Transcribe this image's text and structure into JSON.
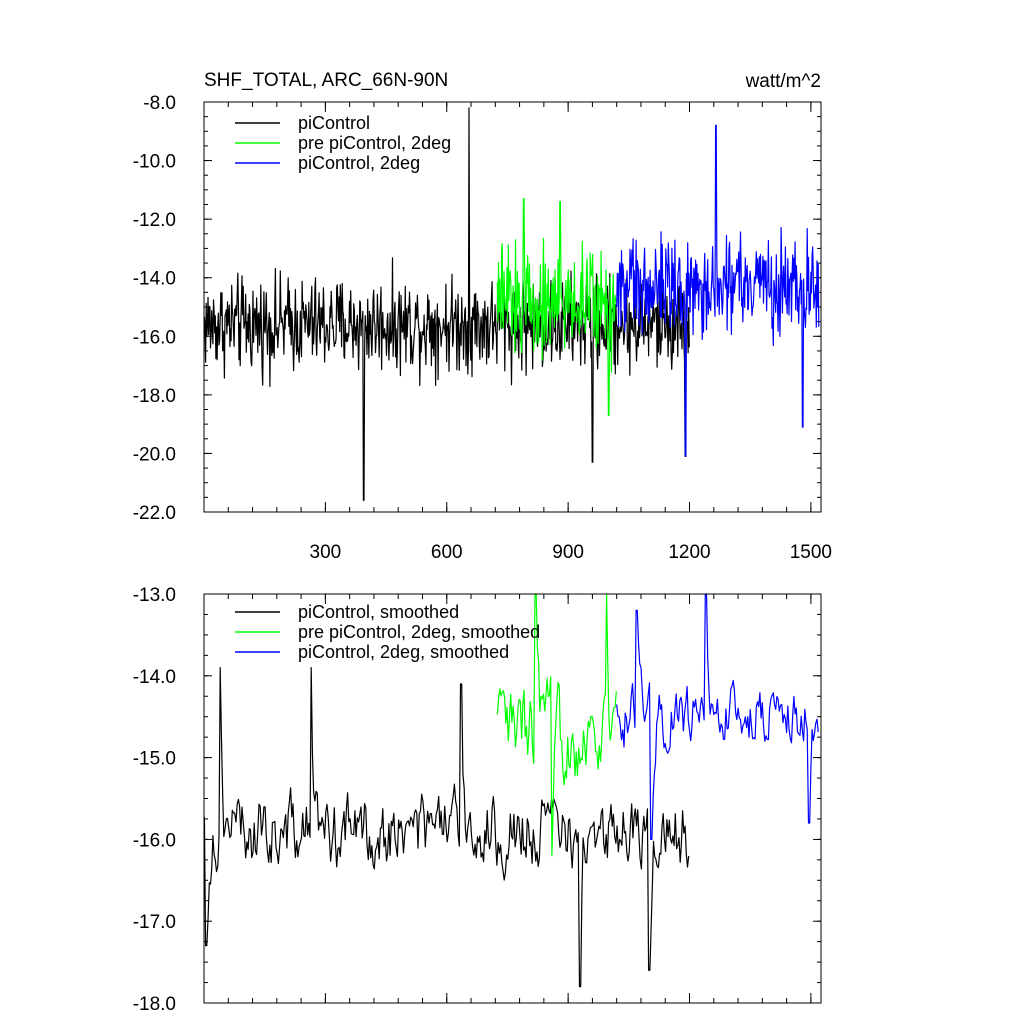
{
  "chart_data": [
    {
      "type": "line",
      "title": "SHF_TOTAL, ARC_66N-90N",
      "units": "watt/m^2",
      "xlabel": "",
      "ylabel": "",
      "xlim": [
        0,
        1525
      ],
      "ylim": [
        -22.0,
        -8.0
      ],
      "xticks": [
        300,
        600,
        900,
        1200,
        1500
      ],
      "yticks": [
        "-8.0",
        "-10.0",
        "-12.0",
        "-14.0",
        "-16.0",
        "-18.0",
        "-20.0",
        "-22.0"
      ],
      "ytick_values": [
        -8,
        -10,
        -12,
        -14,
        -16,
        -18,
        -20,
        -22
      ],
      "legend": "top-left",
      "series": [
        {
          "name": "piControl",
          "color": "#000000",
          "x_start": 1,
          "x_end": 1200,
          "mean": -15.6,
          "amplitude": 1.3,
          "extremes": [
            [
              395,
              -21.6
            ],
            [
              655,
              -8.2
            ],
            [
              960,
              -20.3
            ],
            [
              1190,
              -20.1
            ]
          ]
        },
        {
          "name": "pre piControl, 2deg",
          "color": "#00ff00",
          "x_start": 725,
          "x_end": 1020,
          "mean": -14.8,
          "amplitude": 1.5,
          "extremes": [
            [
              790,
              -11.3
            ],
            [
              880,
              -11.4
            ],
            [
              1000,
              -18.7
            ]
          ]
        },
        {
          "name": "piControl, 2deg",
          "color": "#0000ff",
          "x_start": 1020,
          "x_end": 1520,
          "mean": -14.3,
          "amplitude": 1.3,
          "extremes": [
            [
              1265,
              -8.8
            ],
            [
              1190,
              -20.1
            ],
            [
              1480,
              -19.1
            ],
            [
              1525,
              -11.8
            ]
          ]
        }
      ]
    },
    {
      "type": "line",
      "title": "",
      "xlabel": "",
      "ylabel": "",
      "xlim": [
        0,
        1525
      ],
      "ylim": [
        -18.0,
        -13.0
      ],
      "yticks": [
        "-13.0",
        "-14.0",
        "-15.0",
        "-16.0",
        "-17.0",
        "-18.0"
      ],
      "ytick_values": [
        -13,
        -14,
        -15,
        -16,
        -17,
        -18
      ],
      "legend": "top-left",
      "series": [
        {
          "name": "piControl, smoothed",
          "color": "#000000",
          "x_start": 1,
          "x_end": 1200,
          "mean": -15.9,
          "amplitude": 0.55,
          "extremes": [
            [
              5,
              -17.3
            ],
            [
              40,
              -13.9
            ],
            [
              265,
              -13.9
            ],
            [
              635,
              -14.1
            ],
            [
              930,
              -17.8
            ],
            [
              1100,
              -17.6
            ]
          ]
        },
        {
          "name": "pre piControl, 2deg, smoothed",
          "color": "#00ff00",
          "x_start": 725,
          "x_end": 1020,
          "mean": -14.7,
          "amplitude": 0.7,
          "extremes": [
            [
              820,
              -13.0
            ],
            [
              995,
              -13.0
            ],
            [
              860,
              -16.2
            ]
          ]
        },
        {
          "name": "piControl, 2deg, smoothed",
          "color": "#0000ff",
          "x_start": 1020,
          "x_end": 1520,
          "mean": -14.5,
          "amplitude": 0.45,
          "extremes": [
            [
              1070,
              -13.2
            ],
            [
              1240,
              -13.0
            ],
            [
              1105,
              -16.0
            ],
            [
              1495,
              -15.8
            ]
          ]
        }
      ]
    }
  ]
}
